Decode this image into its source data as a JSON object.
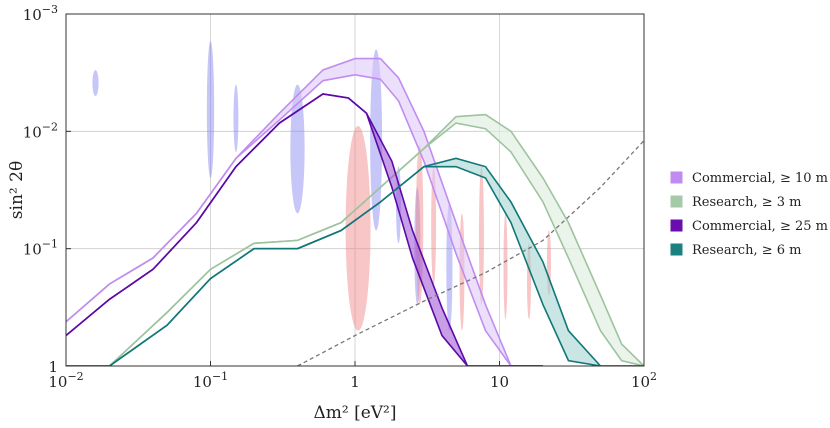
{
  "chart_data": {
    "type": "area",
    "title": "",
    "xlabel": "Δm² [eV²]",
    "ylabel": "sin² 2θ",
    "xscale": "log",
    "yscale": "log",
    "xlim": [
      0.01,
      100
    ],
    "ylim": [
      1,
      0.001
    ],
    "y_inverted": true,
    "grid": true,
    "legend_position": "right",
    "x_ticks": [
      {
        "value": 0.01,
        "base": "10",
        "exp": "−2"
      },
      {
        "value": 0.1,
        "base": "10",
        "exp": "−1"
      },
      {
        "value": 1,
        "base": "1",
        "exp": ""
      },
      {
        "value": 10,
        "base": "10",
        "exp": ""
      },
      {
        "value": 100,
        "base": "10",
        "exp": "2"
      }
    ],
    "y_ticks": [
      {
        "value": 0.001,
        "base": "10",
        "exp": "−3"
      },
      {
        "value": 0.01,
        "base": "10",
        "exp": "−2"
      },
      {
        "value": 0.1,
        "base": "10",
        "exp": "−1"
      },
      {
        "value": 1,
        "base": "1",
        "exp": ""
      }
    ],
    "legend": [
      {
        "label": "Commercial, ≥ 10 m",
        "color": "#c08cf0"
      },
      {
        "label": "Research, ≥ 3 m",
        "color": "#a6c9a8"
      },
      {
        "label": "Commercial, ≥ 25 m",
        "color": "#6a0dad"
      },
      {
        "label": "Research, ≥ 6 m",
        "color": "#1a8080"
      }
    ],
    "series": [
      {
        "name": "Commercial, ≥ 10 m",
        "fill": "#ddc4f7",
        "fill_opacity": 0.55,
        "line": "#c08cf0",
        "x": [
          0.01,
          0.02,
          0.04,
          0.08,
          0.15,
          0.3,
          0.6,
          1.0,
          1.5,
          2.0,
          3.0,
          5.0,
          8.0,
          12,
          20
        ],
        "lower": [
          0.42,
          0.2,
          0.12,
          0.05,
          0.017,
          0.007,
          0.003,
          0.0024,
          0.0024,
          0.0035,
          0.01,
          0.06,
          0.3,
          1.0,
          1.0
        ],
        "upper": [
          0.42,
          0.2,
          0.12,
          0.05,
          0.017,
          0.008,
          0.0037,
          0.0033,
          0.0036,
          0.0055,
          0.018,
          0.11,
          0.5,
          1.0,
          1.0
        ]
      },
      {
        "name": "Research, ≥ 3 m",
        "fill": "#dfeedf",
        "fill_opacity": 0.65,
        "line": "#9dc39f",
        "x": [
          0.01,
          0.02,
          0.05,
          0.1,
          0.2,
          0.4,
          0.8,
          1.5,
          3,
          5,
          8,
          12,
          20,
          30,
          50,
          70,
          100
        ],
        "lower": [
          1.0,
          1.0,
          0.35,
          0.15,
          0.09,
          0.085,
          0.06,
          0.03,
          0.014,
          0.0075,
          0.0072,
          0.01,
          0.025,
          0.06,
          0.25,
          0.65,
          1.0
        ],
        "upper": [
          1.0,
          1.0,
          0.35,
          0.15,
          0.09,
          0.085,
          0.06,
          0.03,
          0.014,
          0.0085,
          0.0095,
          0.015,
          0.04,
          0.12,
          0.5,
          0.9,
          1.0
        ]
      },
      {
        "name": "Commercial, ≥ 25 m",
        "fill": "#a35ed6",
        "fill_opacity": 0.6,
        "line": "#5b0aa8",
        "x": [
          0.01,
          0.02,
          0.04,
          0.08,
          0.15,
          0.3,
          0.6,
          0.9,
          1.2,
          1.8,
          2.5,
          4,
          6,
          10,
          20
        ],
        "lower": [
          0.55,
          0.27,
          0.15,
          0.06,
          0.02,
          0.0085,
          0.0048,
          0.0052,
          0.007,
          0.018,
          0.07,
          0.32,
          1.0,
          1.0,
          1.0
        ],
        "upper": [
          0.55,
          0.27,
          0.15,
          0.06,
          0.02,
          0.0085,
          0.0048,
          0.0052,
          0.007,
          0.03,
          0.12,
          0.55,
          1.0,
          1.0,
          1.0
        ]
      },
      {
        "name": "Research, ≥ 6 m",
        "fill": "#9dd0ce",
        "fill_opacity": 0.55,
        "line": "#117777",
        "x": [
          0.01,
          0.02,
          0.05,
          0.1,
          0.2,
          0.4,
          0.8,
          1.5,
          3,
          5,
          8,
          12,
          20,
          30,
          50,
          100
        ],
        "lower": [
          1.0,
          1.0,
          0.45,
          0.18,
          0.1,
          0.1,
          0.07,
          0.04,
          0.02,
          0.017,
          0.02,
          0.04,
          0.13,
          0.5,
          1.0,
          1.0
        ],
        "upper": [
          1.0,
          1.0,
          0.45,
          0.18,
          0.1,
          0.1,
          0.07,
          0.04,
          0.02,
          0.02,
          0.025,
          0.06,
          0.3,
          0.9,
          1.0,
          1.0
        ]
      }
    ],
    "reference_line": {
      "style": "dashed",
      "color": "#777777",
      "x": [
        0.4,
        1,
        3,
        8,
        20,
        50,
        100
      ],
      "y": [
        1.0,
        0.55,
        0.28,
        0.16,
        0.085,
        0.03,
        0.012
      ]
    },
    "blobs": [
      {
        "kind": "blue",
        "color": "#8080f0",
        "opacity": 0.45,
        "x": 0.016,
        "y_top": 0.003,
        "y_bottom": 0.005,
        "x_width": 1.05
      },
      {
        "kind": "blue",
        "color": "#8080f0",
        "opacity": 0.45,
        "x": 0.1,
        "y_top": 0.0017,
        "y_bottom": 0.025,
        "x_width": 1.06
      },
      {
        "kind": "blue",
        "color": "#8080f0",
        "opacity": 0.45,
        "x": 0.15,
        "y_top": 0.004,
        "y_bottom": 0.015,
        "x_width": 1.04
      },
      {
        "kind": "blue",
        "color": "#8080f0",
        "opacity": 0.45,
        "x": 0.4,
        "y_top": 0.004,
        "y_bottom": 0.05,
        "x_width": 1.12
      },
      {
        "kind": "blue",
        "color": "#8080f0",
        "opacity": 0.45,
        "x": 1.4,
        "y_top": 0.002,
        "y_bottom": 0.07,
        "x_width": 1.1
      },
      {
        "kind": "blue",
        "color": "#8080f0",
        "opacity": 0.45,
        "x": 2.0,
        "y_top": 0.02,
        "y_bottom": 0.09,
        "x_width": 1.04
      },
      {
        "kind": "blue",
        "color": "#8080f0",
        "opacity": 0.45,
        "x": 2.7,
        "y_top": 0.03,
        "y_bottom": 0.3,
        "x_width": 1.05
      },
      {
        "kind": "blue",
        "color": "#8080f0",
        "opacity": 0.45,
        "x": 4.5,
        "y_top": 0.04,
        "y_bottom": 0.5,
        "x_width": 1.05
      },
      {
        "kind": "red",
        "color": "#f08080",
        "opacity": 0.45,
        "x": 1.05,
        "y_top": 0.009,
        "y_bottom": 0.5,
        "x_width": 1.22
      },
      {
        "kind": "red",
        "color": "#f08080",
        "opacity": 0.45,
        "x": 2.8,
        "y_top": 0.013,
        "y_bottom": 0.3,
        "x_width": 1.06
      },
      {
        "kind": "red",
        "color": "#f08080",
        "opacity": 0.45,
        "x": 3.5,
        "y_top": 0.02,
        "y_bottom": 0.2,
        "x_width": 1.04
      },
      {
        "kind": "red",
        "color": "#f08080",
        "opacity": 0.45,
        "x": 5.5,
        "y_top": 0.05,
        "y_bottom": 0.5,
        "x_width": 1.04
      },
      {
        "kind": "red",
        "color": "#f08080",
        "opacity": 0.45,
        "x": 7.5,
        "y_top": 0.02,
        "y_bottom": 0.3,
        "x_width": 1.04
      },
      {
        "kind": "red",
        "color": "#f08080",
        "opacity": 0.45,
        "x": 11,
        "y_top": 0.05,
        "y_bottom": 0.4,
        "x_width": 1.03
      },
      {
        "kind": "red",
        "color": "#f08080",
        "opacity": 0.45,
        "x": 16,
        "y_top": 0.09,
        "y_bottom": 0.4,
        "x_width": 1.03
      },
      {
        "kind": "red",
        "color": "#f08080",
        "opacity": 0.45,
        "x": 22,
        "y_top": 0.07,
        "y_bottom": 0.25,
        "x_width": 1.025
      }
    ]
  }
}
